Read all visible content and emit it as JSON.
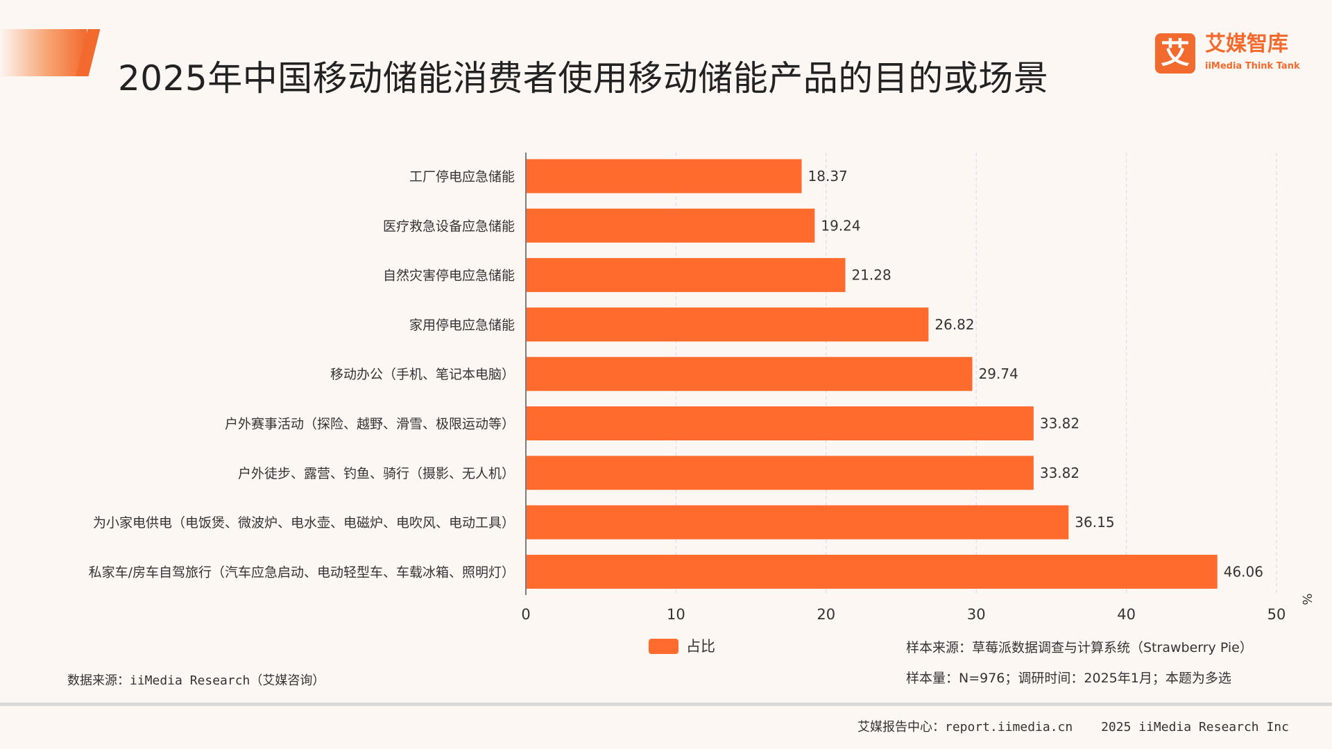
{
  "header": {
    "title": "2025年中国移动储能消费者使用移动储能产品的目的或场景",
    "logo_icon": "艾",
    "logo_cn": "艾媒智库",
    "logo_en": "iiMedia Think Tank"
  },
  "chart_data": {
    "type": "bar",
    "orientation": "horizontal",
    "title": "2025年中国移动储能消费者使用移动储能产品的目的或场景",
    "categories": [
      "工厂停电应急储能",
      "医疗救急设备应急储能",
      "自然灾害停电应急储能",
      "家用停电应急储能",
      "移动办公（手机、笔记本电脑）",
      "户外赛事活动（探险、越野、滑雪、极限运动等）",
      "户外徒步、露营、钓鱼、骑行（摄影、无人机）",
      "为小家电供电（电饭煲、微波炉、电水壶、电磁炉、电吹风、电动工具）",
      "私家车/房车自驾旅行（汽车应急启动、电动轻型车、车载冰箱、照明灯）"
    ],
    "series": [
      {
        "name": "占比",
        "values": [
          18.37,
          19.24,
          21.28,
          26.82,
          29.74,
          33.82,
          33.82,
          36.15,
          46.06
        ]
      }
    ],
    "x_ticks": [
      0,
      10,
      20,
      30,
      40,
      50
    ],
    "xlim": [
      0,
      50
    ],
    "unit_label": "%",
    "grid": "vertical-dashed",
    "legend_position": "bottom-center",
    "bar_color": "#ff6b2c"
  },
  "legend": {
    "label": "占比"
  },
  "notes": {
    "source": "数据来源：iiMedia Research（艾媒咨询）",
    "sample_source": "样本来源：草莓派数据调查与计算系统（Strawberry Pie）",
    "sample_size": "样本量：N=976；调研时间：2025年1月；本题为多选"
  },
  "footer": {
    "report_center": "艾媒报告中心：report.iimedia.cn",
    "copyright": "2025 iiMedia Research Inc"
  },
  "colors": {
    "accent": "#f26a2e",
    "bar": "#ff6b2c",
    "background": "#fdf7f4"
  }
}
